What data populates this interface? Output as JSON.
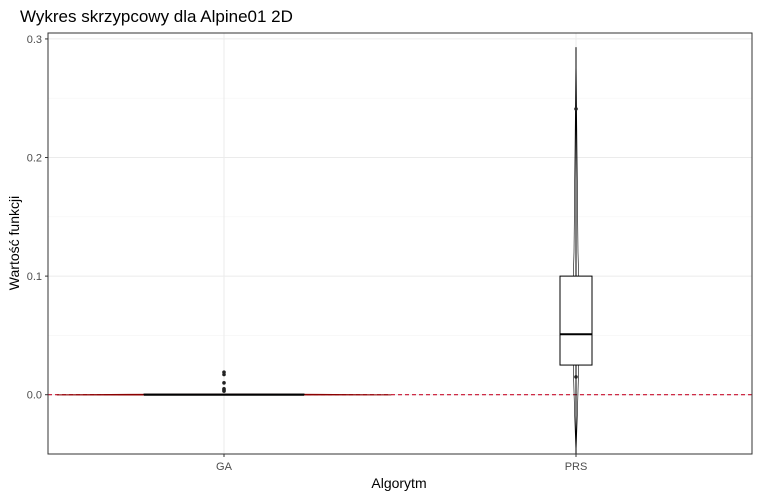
{
  "chart_data": {
    "type": "violin",
    "title": "Wykres skrzypcowy dla Alpine01 2D",
    "xlabel": "Algorytm",
    "ylabel": "Wartość funkcji",
    "categories": [
      "GA",
      "PRS"
    ],
    "ylim": [
      -0.05,
      0.305
    ],
    "yticks": [
      0.0,
      0.1,
      0.2,
      0.3
    ],
    "ytick_labels": [
      "0.0",
      "0.1",
      "0.2",
      "0.3"
    ],
    "grid": true,
    "reference_line": {
      "y": 0,
      "color": "#c8102e",
      "style": "dashed"
    },
    "series": [
      {
        "category": "GA",
        "box": {
          "min": 0.0,
          "q1": 0.0,
          "median": 0.0,
          "q3": 0.0005,
          "max": 0.001
        },
        "outliers": [
          0.003,
          0.004,
          0.005,
          0.01,
          0.017,
          0.019
        ],
        "violin_width": 0.95
      },
      {
        "category": "PRS",
        "box": {
          "min": -0.05,
          "q1": 0.025,
          "median": 0.051,
          "q3": 0.1,
          "max": 0.293
        },
        "outliers": [
          0.015,
          0.241
        ],
        "violin_width": 0.05
      }
    ],
    "colors": {
      "box": "#000000",
      "violin_ga": "#8b0000",
      "reference": "#c8102e"
    }
  }
}
